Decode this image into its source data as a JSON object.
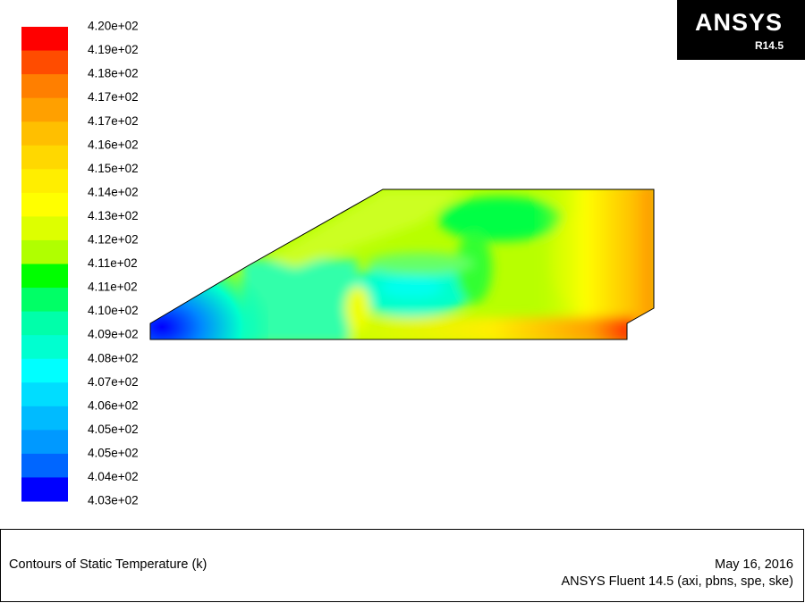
{
  "colorbar": {
    "labels": [
      "4.20e+02",
      "4.19e+02",
      "4.18e+02",
      "4.17e+02",
      "4.17e+02",
      "4.16e+02",
      "4.15e+02",
      "4.14e+02",
      "4.13e+02",
      "4.12e+02",
      "4.11e+02",
      "4.11e+02",
      "4.10e+02",
      "4.09e+02",
      "4.08e+02",
      "4.07e+02",
      "4.06e+02",
      "4.05e+02",
      "4.05e+02",
      "4.04e+02",
      "4.03e+02"
    ],
    "colors": [
      "#ff0000",
      "#ff4c00",
      "#ff7f00",
      "#ffa000",
      "#ffbf00",
      "#ffd800",
      "#ffee00",
      "#ffff00",
      "#ddff00",
      "#b0ff00",
      "#00ff00",
      "#00ff66",
      "#00ffaa",
      "#00ffd0",
      "#00ffff",
      "#00ddff",
      "#00bbff",
      "#0099ff",
      "#0066ff",
      "#0000ff"
    ]
  },
  "logo": {
    "name": "ANSYS",
    "version": "R14.5"
  },
  "footer": {
    "title": "Contours of Static Temperature (k)",
    "date": "May 16, 2016",
    "software": "ANSYS Fluent 14.5 (axi, pbns, spe, ske)"
  }
}
